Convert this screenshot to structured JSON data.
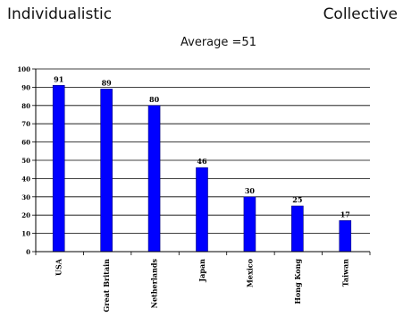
{
  "header": {
    "left_label": "Individualistic",
    "right_label": "Collective",
    "subtitle": "Average =51"
  },
  "colors": {
    "bar": "#0000ff",
    "bar_stroke": "#000080",
    "grid": "#000000"
  },
  "chart_data": {
    "type": "bar",
    "categories": [
      "USA",
      "Great Britain",
      "Netherlands",
      "Japan",
      "Mexico",
      "Hong Kong",
      "Taiwan"
    ],
    "values": [
      91,
      89,
      80,
      46,
      30,
      25,
      17
    ],
    "data_labels": [
      "91",
      "89",
      "80",
      "46",
      "30",
      "25",
      "17"
    ],
    "yticks": [
      "0",
      "10",
      "20",
      "30",
      "40",
      "50",
      "60",
      "70",
      "80",
      "90",
      "100"
    ],
    "title": "",
    "xlabel": "",
    "ylabel": "",
    "ylim": [
      0,
      100
    ],
    "grid": true,
    "legend": "none"
  }
}
